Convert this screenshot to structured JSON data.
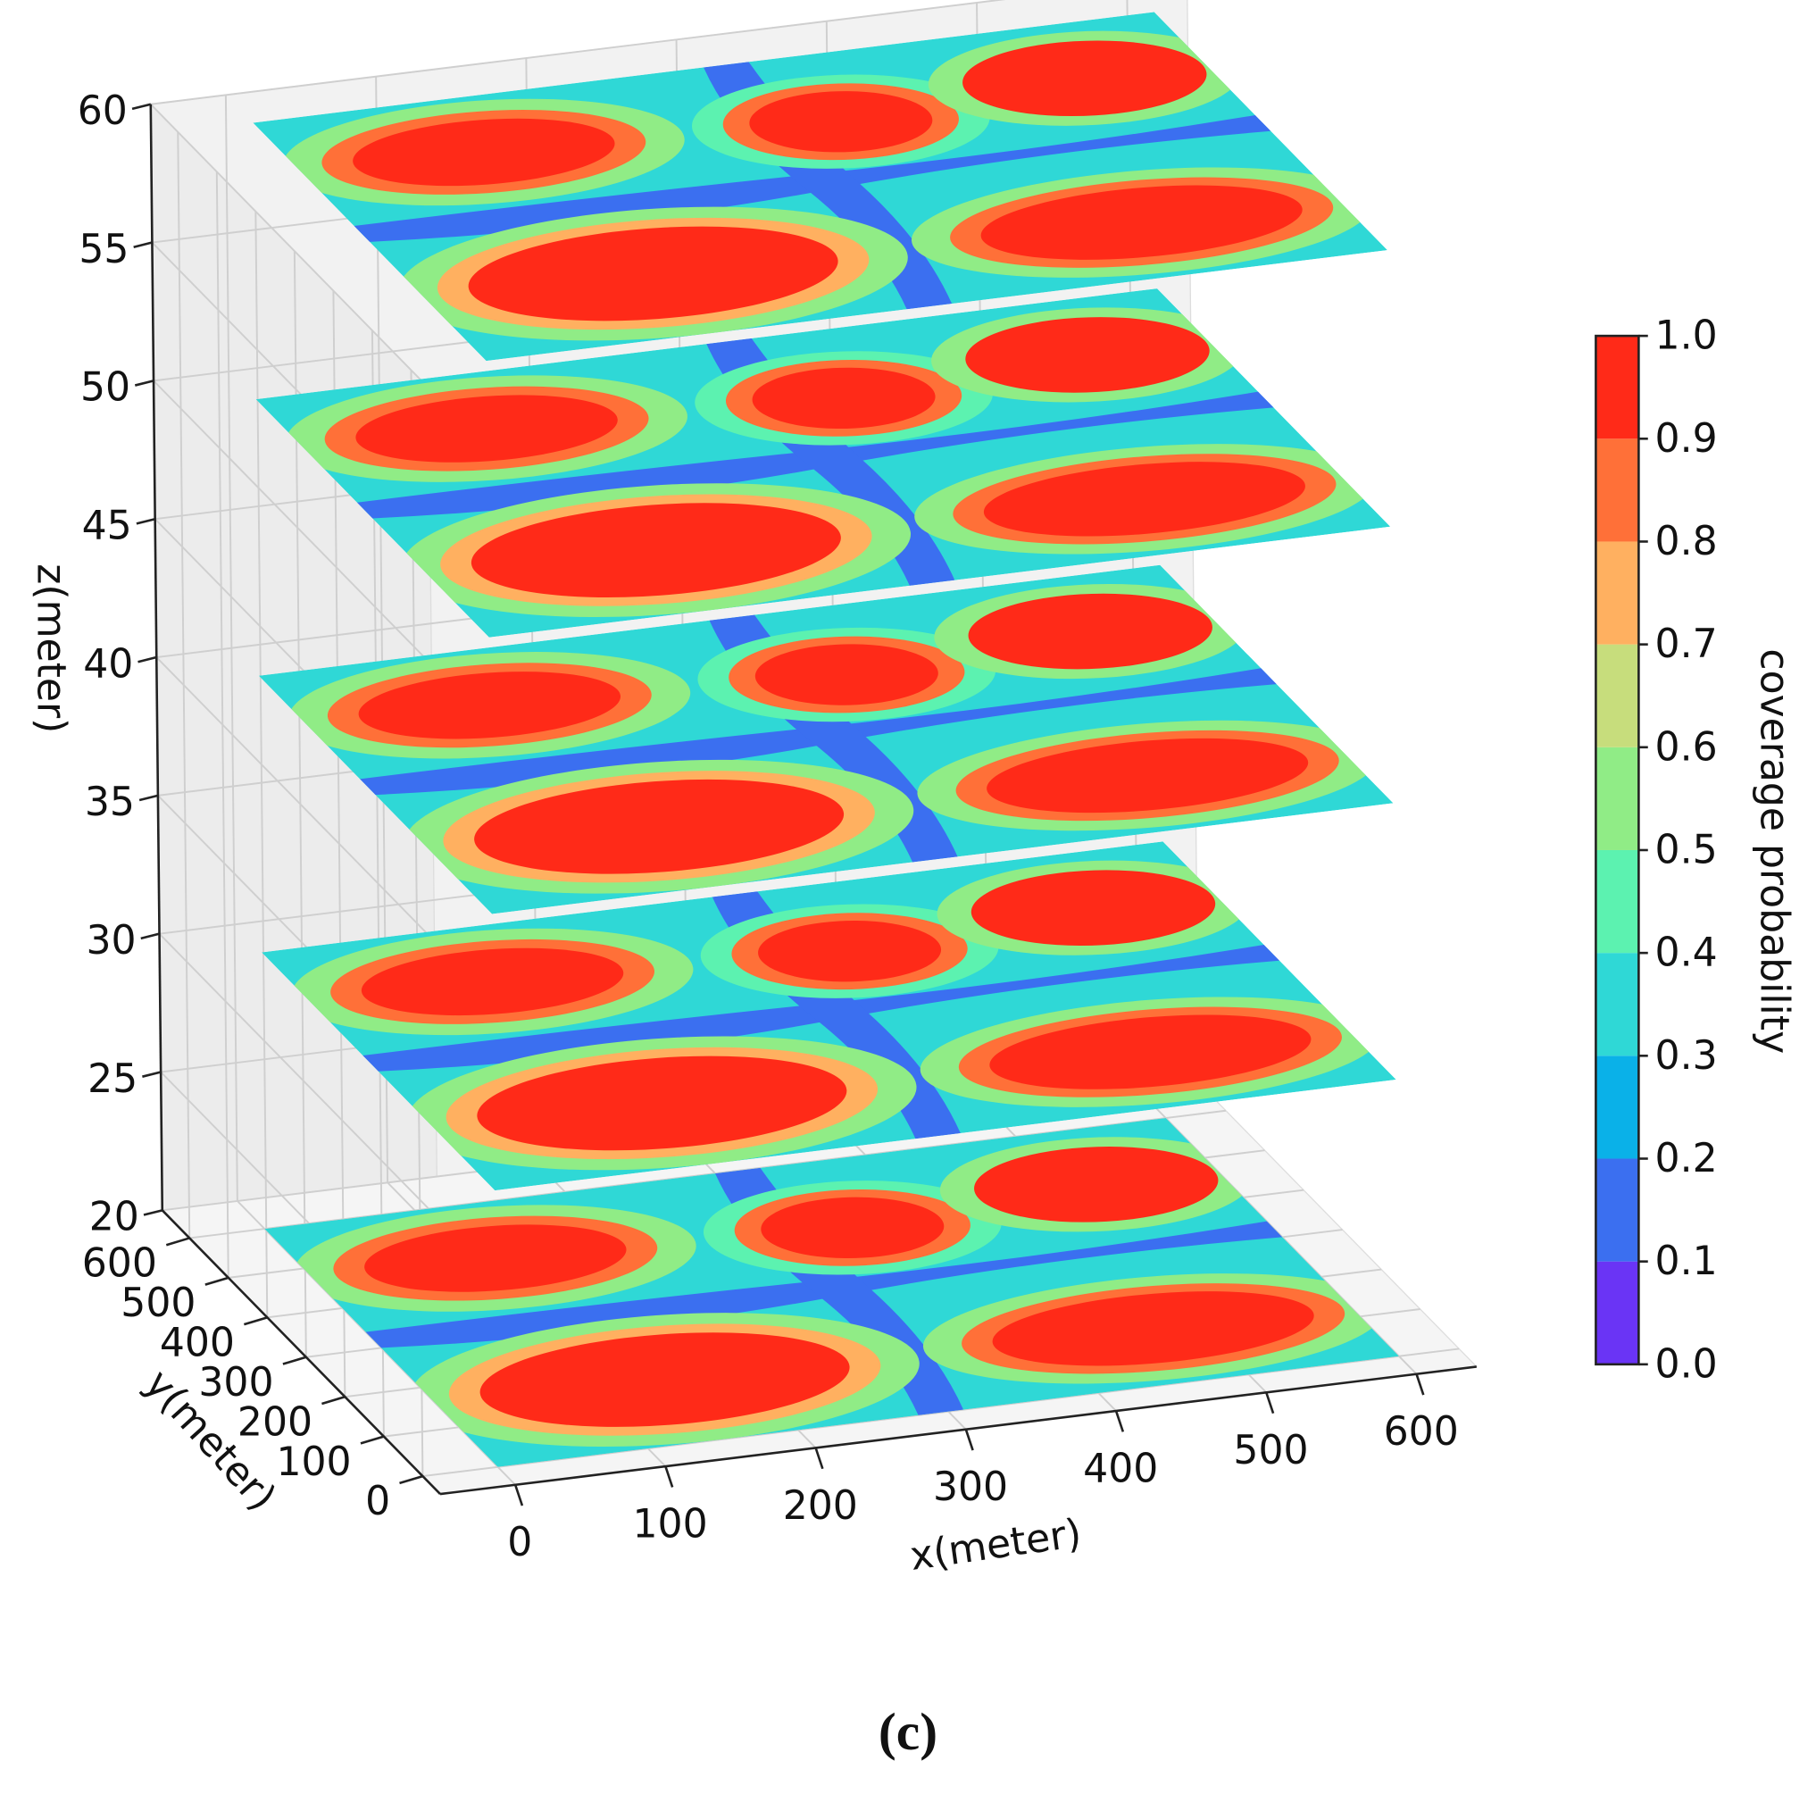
{
  "chart_data": {
    "type": "contour3d",
    "xlabel": "x(meter)",
    "ylabel": "y(meter)",
    "zlabel": "z(meter)",
    "xlim": [
      -50,
      640
    ],
    "ylim": [
      -45,
      670
    ],
    "zlim": [
      20,
      60
    ],
    "xticks": [
      0,
      100,
      200,
      300,
      400,
      500,
      600
    ],
    "yticks": [
      0,
      100,
      200,
      300,
      400,
      500,
      600
    ],
    "zticks": [
      20,
      25,
      30,
      35,
      40,
      45,
      50,
      55,
      60
    ],
    "z_levels": [
      20,
      30,
      40,
      50,
      60
    ],
    "grid": true,
    "colorbar": {
      "label": "coverage probability",
      "levels": [
        0,
        0.1,
        0.2,
        0.3,
        0.4,
        0.5,
        0.6,
        0.7,
        0.8,
        0.9,
        1
      ],
      "colors": [
        "#6a34f5",
        "#3b6ff0",
        "#0ab1e8",
        "#2fd8d6",
        "#5cf2b0",
        "#90ec86",
        "#c7dd7c",
        "#ffb060",
        "#ff7038",
        "#ff2a18"
      ],
      "ticks": [
        {
          "value": 0,
          "label": "0.0"
        },
        {
          "value": 0.1,
          "label": "0.1"
        },
        {
          "value": 0.2,
          "label": "0.2"
        },
        {
          "value": 0.3,
          "label": "0.3"
        },
        {
          "value": 0.4,
          "label": "0.4"
        },
        {
          "value": 0.5,
          "label": "0.5"
        },
        {
          "value": 0.6,
          "label": "0.6"
        },
        {
          "value": 0.7,
          "label": "0.7"
        },
        {
          "value": 0.8,
          "label": "0.8"
        },
        {
          "value": 0.9,
          "label": "0.9"
        },
        {
          "value": 1,
          "label": "1.0"
        }
      ]
    },
    "caption": "(c)"
  }
}
